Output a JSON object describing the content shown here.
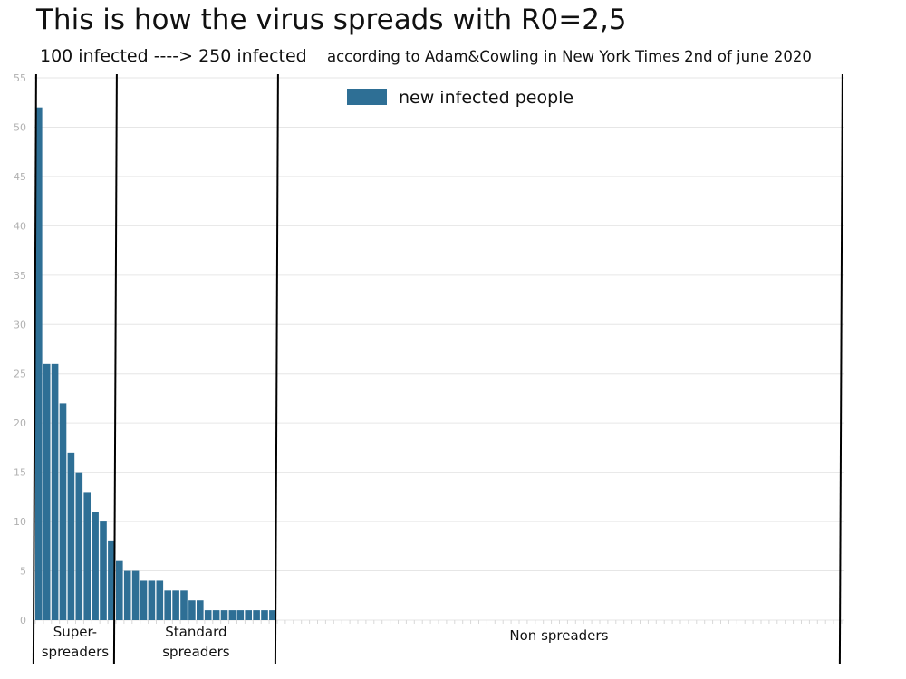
{
  "header": {
    "title": "This is how the virus spreads with R0=2,5",
    "subtitle": "100 infected ----> 250 infected",
    "source": "according to Adam&Cowling in New York Times  2nd of june 2020"
  },
  "colors": {
    "bar": "#2e6f95",
    "grid": "#e6e6e6",
    "divider": "#000000",
    "tick_text": "#b0b0b0"
  },
  "chart_data": {
    "type": "bar",
    "title": "This is how the virus spreads with R0=2,5",
    "xlabel": "",
    "ylabel": "",
    "ylim": [
      0,
      55
    ],
    "yticks": [
      0,
      5,
      10,
      15,
      20,
      25,
      30,
      35,
      40,
      45,
      50,
      55
    ],
    "grid": true,
    "category_count": 100,
    "series": [
      {
        "name": "new infected people",
        "values": [
          52,
          26,
          26,
          22,
          17,
          15,
          13,
          11,
          10,
          8,
          6,
          5,
          5,
          4,
          4,
          4,
          3,
          3,
          3,
          2,
          2,
          1,
          1,
          1,
          1,
          1,
          1,
          1,
          1,
          1,
          0,
          0,
          0,
          0,
          0,
          0,
          0,
          0,
          0,
          0,
          0,
          0,
          0,
          0,
          0,
          0,
          0,
          0,
          0,
          0,
          0,
          0,
          0,
          0,
          0,
          0,
          0,
          0,
          0,
          0,
          0,
          0,
          0,
          0,
          0,
          0,
          0,
          0,
          0,
          0,
          0,
          0,
          0,
          0,
          0,
          0,
          0,
          0,
          0,
          0,
          0,
          0,
          0,
          0,
          0,
          0,
          0,
          0,
          0,
          0,
          0,
          0,
          0,
          0,
          0,
          0,
          0,
          0,
          0,
          0
        ]
      }
    ],
    "legend": {
      "position": "top-center",
      "entries": [
        "new infected people"
      ]
    },
    "groups": [
      {
        "label_lines": [
          "Super-",
          "spreaders"
        ],
        "first_index": 0,
        "last_index": 9
      },
      {
        "label_lines": [
          "Standard",
          "spreaders"
        ],
        "first_index": 10,
        "last_index": 29
      },
      {
        "label_lines": [
          "Non spreaders"
        ],
        "first_index": 30,
        "last_index": 99
      }
    ]
  }
}
